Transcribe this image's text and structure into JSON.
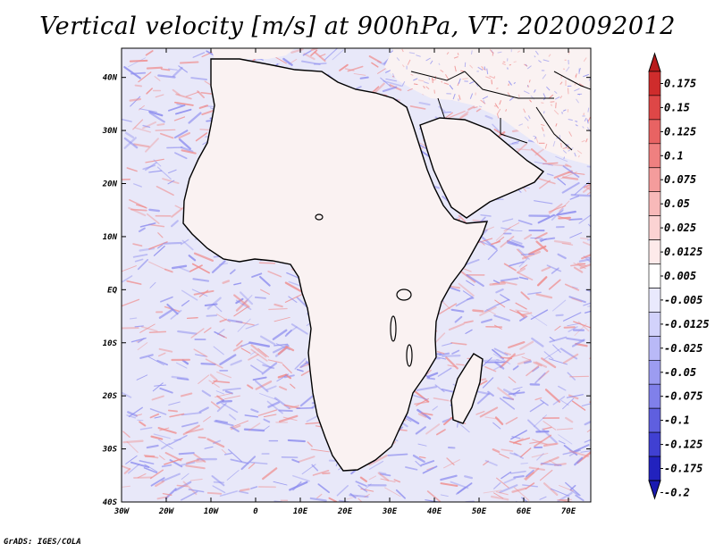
{
  "title": "Vertical velocity [m/s] at 900hPa, VT: 2020092012",
  "credit": "GrADS: IGES/COLA",
  "map": {
    "lat_ticks": [
      "40N",
      "30N",
      "20N",
      "10N",
      "EQ",
      "10S",
      "20S",
      "30S",
      "40S"
    ],
    "lon_ticks": [
      "30W",
      "20W",
      "10W",
      "0",
      "10E",
      "20E",
      "30E",
      "40E",
      "50E",
      "60E",
      "70E"
    ]
  },
  "legend": {
    "labels": [
      "0.175",
      "0.15",
      "0.125",
      "0.1",
      "0.075",
      "0.05",
      "0.025",
      "0.0125",
      "0.005",
      "-0.005",
      "-0.0125",
      "-0.025",
      "-0.05",
      "-0.075",
      "-0.1",
      "-0.125",
      "-0.175",
      "-0.2"
    ],
    "colors": [
      "#b81c1c",
      "#cf2c2c",
      "#de4747",
      "#e86363",
      "#ef8080",
      "#f49c9c",
      "#f8b9b9",
      "#fbd3d3",
      "#fdeaea",
      "#ffffff",
      "#e9e9fd",
      "#d2d2fb",
      "#b9b9f7",
      "#9c9cf1",
      "#8080ea",
      "#5f5fdf",
      "#4040d2",
      "#2222be",
      "#1a1ab0"
    ]
  },
  "field_colors": {
    "ocean": "#e8e8f9",
    "land": "#faf2f2",
    "pos": "#ef8a8a",
    "neg": "#8a8aee"
  }
}
